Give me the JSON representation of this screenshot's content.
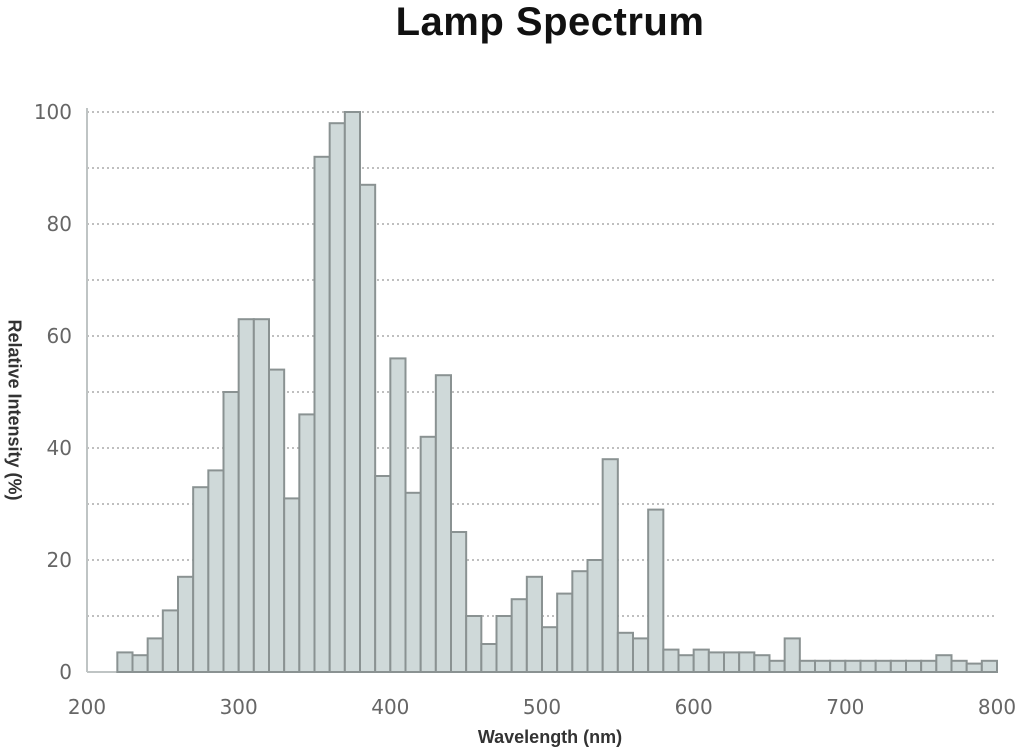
{
  "chart_data": {
    "type": "bar",
    "title": "Lamp Spectrum",
    "xlabel": "Wavelength (nm)",
    "ylabel": "Relative Intensity (%)",
    "xlim": [
      200,
      800
    ],
    "ylim": [
      0,
      100
    ],
    "xticks": [
      "200",
      "300",
      "400",
      "500",
      "600",
      "700",
      "800"
    ],
    "yticks": [
      "0",
      "20",
      "40",
      "60",
      "80",
      "100"
    ],
    "grid": true,
    "bar_color": "#cfd9d9",
    "bar_edge": "#8a9292",
    "bin_width_nm": 10,
    "x": [
      225,
      235,
      245,
      255,
      265,
      275,
      285,
      295,
      305,
      315,
      325,
      335,
      345,
      355,
      365,
      375,
      385,
      395,
      405,
      415,
      425,
      435,
      445,
      455,
      465,
      475,
      485,
      495,
      505,
      515,
      525,
      535,
      545,
      555,
      565,
      575,
      585,
      595,
      605,
      615,
      625,
      635,
      645,
      655,
      665,
      675,
      685,
      695,
      705,
      715,
      725,
      735,
      745,
      755,
      765,
      775,
      785,
      795
    ],
    "values": [
      3.5,
      3,
      6,
      11,
      17,
      33,
      36,
      50,
      63,
      63,
      54,
      31,
      46,
      92,
      98,
      100,
      87,
      35,
      56,
      32,
      42,
      53,
      25,
      10,
      5,
      10,
      13,
      17,
      8,
      14,
      18,
      20,
      38,
      7,
      6,
      29,
      4,
      3,
      4,
      3.5,
      3.5,
      3.5,
      3,
      2,
      6,
      2,
      2,
      2,
      2,
      2,
      2,
      2,
      2,
      2,
      3,
      2,
      1.5,
      2
    ]
  }
}
